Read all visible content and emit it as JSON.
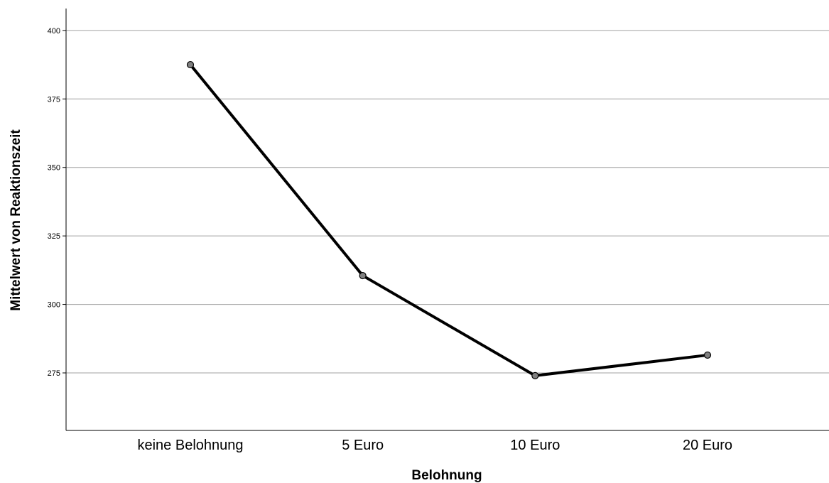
{
  "chart_data": {
    "type": "line",
    "title": "",
    "xlabel": "Belohnung",
    "ylabel": "Mittelwert von Reaktionszeit",
    "categories": [
      "keine Belohnung",
      "5 Euro",
      "10 Euro",
      "20 Euro"
    ],
    "series": [
      {
        "values": [
          387.5,
          310.5,
          274,
          281.5
        ]
      }
    ],
    "ylim": [
      254,
      408
    ],
    "yticks": [
      275,
      300,
      325,
      350,
      375,
      400
    ],
    "grid": "horizontal",
    "legend": "none",
    "colors": {
      "line": "#000000",
      "marker_fill": "#808080",
      "marker_stroke": "#000000",
      "grid": "#a0a0a0",
      "axis": "#000000"
    }
  }
}
